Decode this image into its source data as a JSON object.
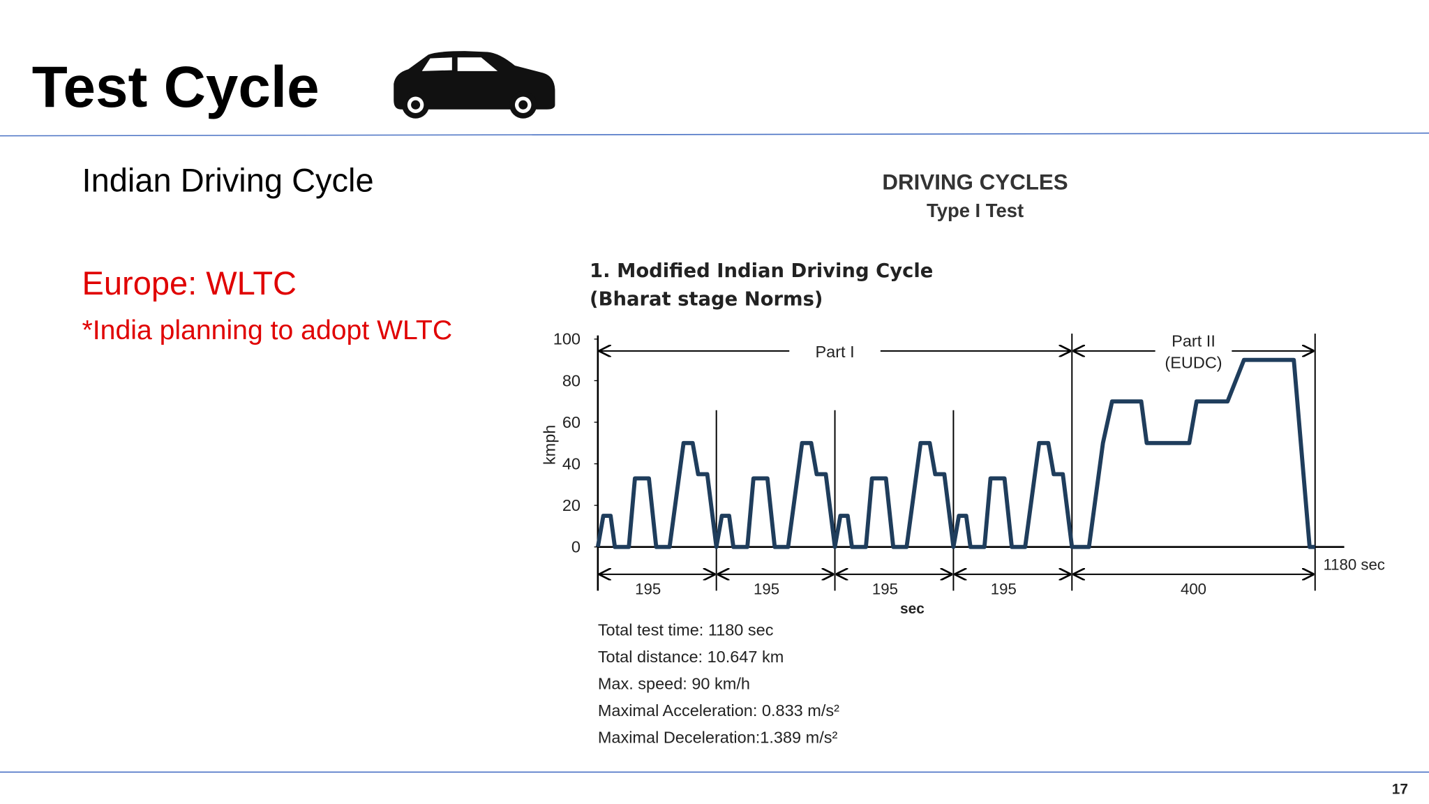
{
  "header": {
    "title": "Test Cycle",
    "page_number": "17"
  },
  "body": {
    "subtitle": "Indian Driving Cycle",
    "highlight": "Europe: WLTC",
    "note": "*India planning to adopt WLTC"
  },
  "figure": {
    "heading": "DRIVING CYCLES",
    "subheading": "Type I Test",
    "notes": [
      "Total test time: 1180 sec",
      "Total distance: 10.647 km",
      "Max. speed: 90 km/h",
      "Maximal Acceleration: 0.833 m/s²",
      "Maximal Deceleration:1.389 m/s²"
    ]
  },
  "chart_data": {
    "type": "line",
    "title": "1. Modified Indian Driving Cycle",
    "subtitle": "(Bharat stage Norms)",
    "ylabel": "kmph",
    "xlabel": "sec",
    "x_end_label": "1180 sec",
    "color": "#1f3d5c",
    "xlim": [
      0,
      1180
    ],
    "ylim": [
      0,
      100
    ],
    "yticks": [
      0,
      20,
      40,
      60,
      80,
      100
    ],
    "parts": [
      {
        "label": [
          "Part I"
        ]
      },
      {
        "label": [
          "Part II",
          "(EUDC)"
        ]
      }
    ],
    "segments": [
      195,
      195,
      195,
      195,
      400
    ],
    "x": [
      0,
      9,
      21,
      28,
      51,
      61,
      84,
      96,
      118,
      141,
      156,
      165,
      180,
      195,
      204,
      216,
      223,
      246,
      256,
      279,
      291,
      313,
      336,
      351,
      360,
      375,
      390,
      399,
      411,
      418,
      441,
      451,
      474,
      486,
      508,
      531,
      546,
      555,
      570,
      585,
      594,
      606,
      613,
      636,
      646,
      669,
      681,
      703,
      726,
      741,
      750,
      765,
      780,
      808,
      831,
      846,
      894,
      903,
      973,
      985,
      1036,
      1063,
      1145,
      1171,
      1180
    ],
    "values": [
      0,
      15,
      15,
      0,
      0,
      33,
      33,
      0,
      0,
      50,
      50,
      35,
      35,
      0,
      15,
      15,
      0,
      0,
      33,
      33,
      0,
      0,
      50,
      50,
      35,
      35,
      0,
      15,
      15,
      0,
      0,
      33,
      33,
      0,
      0,
      50,
      50,
      35,
      35,
      0,
      15,
      15,
      0,
      0,
      33,
      33,
      0,
      0,
      50,
      50,
      35,
      35,
      0,
      0,
      50,
      70,
      70,
      50,
      50,
      70,
      70,
      90,
      90,
      0,
      0
    ]
  }
}
